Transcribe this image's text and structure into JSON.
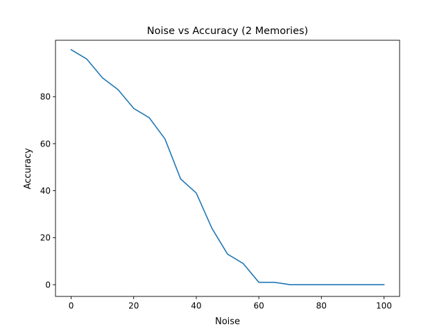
{
  "chart_data": {
    "type": "line",
    "title": "Noise vs Accuracy (2 Memories)",
    "xlabel": "Noise",
    "ylabel": "Accuracy",
    "xlim": [
      -5,
      105
    ],
    "ylim": [
      -5,
      104
    ],
    "x_ticks": [
      0,
      20,
      40,
      60,
      80,
      100
    ],
    "y_ticks": [
      0,
      20,
      40,
      60,
      80
    ],
    "grid": false,
    "series": [
      {
        "color": "#1f77b4",
        "x": [
          0,
          5,
          10,
          15,
          20,
          25,
          30,
          35,
          40,
          45,
          50,
          55,
          60,
          65,
          70,
          75,
          80,
          85,
          90,
          95,
          100
        ],
        "y": [
          100,
          96,
          88,
          83,
          75,
          71,
          62,
          45,
          39,
          24,
          13,
          9,
          1,
          1,
          0,
          0,
          0,
          0,
          0,
          0,
          0
        ]
      }
    ]
  }
}
